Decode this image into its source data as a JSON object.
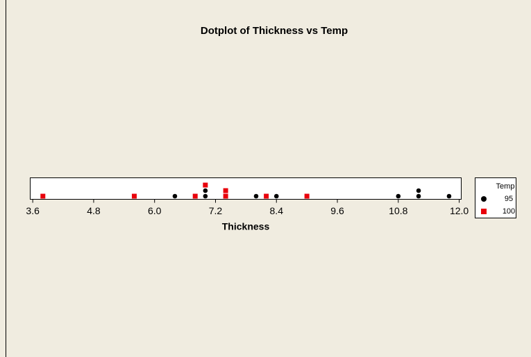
{
  "chart_data": {
    "type": "dotplot",
    "title": "Dotplot of Thickness vs Temp",
    "xlabel": "Thickness",
    "xlim": [
      3.55,
      12.04
    ],
    "xticks": [
      {
        "value": 3.6,
        "label": "3.6"
      },
      {
        "value": 4.8,
        "label": "4.8"
      },
      {
        "value": 6.0,
        "label": "6.0"
      },
      {
        "value": 7.2,
        "label": "7.2"
      },
      {
        "value": 8.4,
        "label": "8.4"
      },
      {
        "value": 9.6,
        "label": "9.6"
      },
      {
        "value": 10.8,
        "label": "10.8"
      },
      {
        "value": 12.0,
        "label": "12.0"
      }
    ],
    "legend_title": "Temp",
    "series": [
      {
        "name": "95",
        "color": "#000000",
        "marker": "circle",
        "values": [
          6.4,
          7.0,
          7.0,
          8.0,
          8.4,
          10.8,
          11.2,
          11.2,
          11.8
        ]
      },
      {
        "name": "100",
        "color": "#e8000b",
        "marker": "square",
        "values": [
          3.8,
          5.6,
          6.8,
          7.0,
          7.4,
          7.4,
          8.2,
          9.0
        ]
      }
    ]
  }
}
